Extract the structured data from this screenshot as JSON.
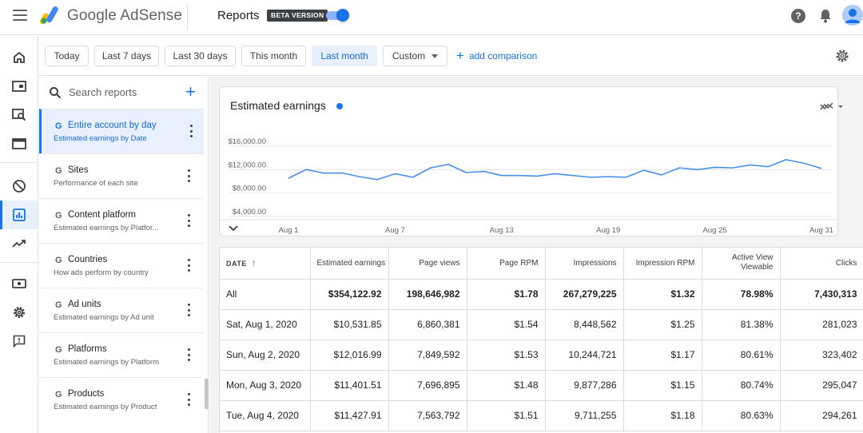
{
  "app": {
    "brand": "Google AdSense",
    "page_title": "Reports",
    "beta_badge": "BETA VERSION"
  },
  "filters": {
    "chips": [
      "Today",
      "Last 7 days",
      "Last 30 days",
      "This month",
      "Last month",
      "Custom"
    ],
    "selected": "Last month",
    "add_comparison": "add comparison"
  },
  "reports_panel": {
    "search_placeholder": "Search reports",
    "items": [
      {
        "name": "Entire account by day",
        "desc": "Estimated earnings by Date",
        "active": true
      },
      {
        "name": "Sites",
        "desc": "Performance of each site",
        "active": false
      },
      {
        "name": "Content platform",
        "desc": "Estimated earnings by Platfor...",
        "active": false
      },
      {
        "name": "Countries",
        "desc": "How ads perform by country",
        "active": false
      },
      {
        "name": "Ad units",
        "desc": "Estimated earnings by Ad unit",
        "active": false
      },
      {
        "name": "Platforms",
        "desc": "Estimated earnings by Platform",
        "active": false
      },
      {
        "name": "Products",
        "desc": "Estimated earnings by Product",
        "active": false
      }
    ]
  },
  "icons": {
    "rail": [
      "home-icon",
      "ads-icon",
      "inspector-icon",
      "browser-icon",
      "block-icon",
      "reports-icon",
      "trending-icon",
      "payments-icon",
      "settings-icon",
      "feedback-icon"
    ],
    "top": [
      "menu-icon",
      "adsense-logo-icon",
      "help-icon",
      "notifications-icon",
      "account-avatar"
    ]
  },
  "colors": {
    "accent": "#1a73e8",
    "selected_bg": "#e8f0fe",
    "line": "#4a8fe7"
  },
  "chart_data": {
    "type": "line",
    "title": "Estimated earnings",
    "x_tick_labels": [
      "Aug 1",
      "Aug 7",
      "Aug 13",
      "Aug 19",
      "Aug 25",
      "Aug 31"
    ],
    "x_tick_days": [
      1,
      7,
      13,
      19,
      25,
      31
    ],
    "y_tick_labels": [
      "$16,000.00",
      "$12,000.00",
      "$8,000.00",
      "$4,000.00"
    ],
    "y_tick_values": [
      16000,
      12000,
      8000,
      4000
    ],
    "ylim": [
      2000,
      18000
    ],
    "grid": true,
    "x": [
      1,
      2,
      3,
      4,
      5,
      6,
      7,
      8,
      9,
      10,
      11,
      12,
      13,
      14,
      15,
      16,
      17,
      18,
      19,
      20,
      21,
      22,
      23,
      24,
      25,
      26,
      27,
      28,
      29,
      30,
      31
    ],
    "series": [
      {
        "values": [
          10531.85,
          12016.99,
          11401.51,
          11427.91,
          10800,
          10300,
          11300,
          10700,
          12300,
          12900,
          11500,
          11700,
          11000,
          11000,
          10900,
          11300,
          11000,
          10700,
          10800,
          10700,
          11900,
          11100,
          12300,
          12000,
          12400,
          12300,
          12800,
          12500,
          13700,
          13100,
          12200
        ]
      }
    ]
  },
  "table": {
    "columns": [
      "DATE",
      "Estimated earnings",
      "Page views",
      "Page RPM",
      "Impressions",
      "Impression RPM",
      "Active View Viewable",
      "Clicks"
    ],
    "total": [
      "All",
      "$354,122.92",
      "198,646,982",
      "$1.78",
      "267,279,225",
      "$1.32",
      "78.98%",
      "7,430,313"
    ],
    "rows": [
      [
        "Sat, Aug 1, 2020",
        "$10,531.85",
        "6,860,381",
        "$1.54",
        "8,448,562",
        "$1.25",
        "81.38%",
        "281,023"
      ],
      [
        "Sun, Aug 2, 2020",
        "$12,016.99",
        "7,849,592",
        "$1.53",
        "10,244,721",
        "$1.17",
        "80.61%",
        "323,402"
      ],
      [
        "Mon, Aug 3, 2020",
        "$11,401.51",
        "7,696,895",
        "$1.48",
        "9,877,286",
        "$1.15",
        "80.74%",
        "295,047"
      ],
      [
        "Tue, Aug 4, 2020",
        "$11,427.91",
        "7,563,792",
        "$1.51",
        "9,711,255",
        "$1.18",
        "80.63%",
        "294,261"
      ]
    ]
  }
}
